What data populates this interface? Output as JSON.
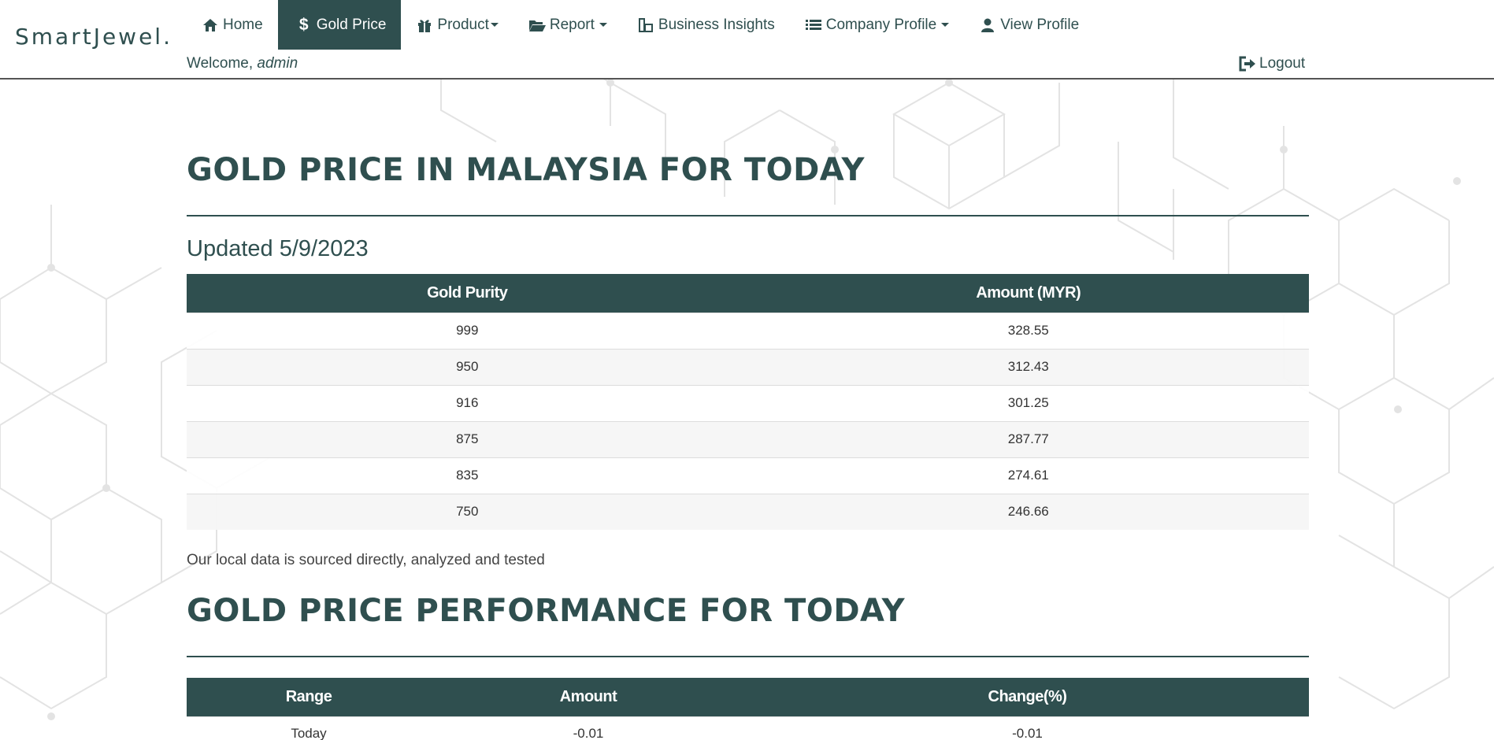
{
  "brand": "SmartJewel.",
  "nav": {
    "home": "Home",
    "gold_price": "Gold Price",
    "product": "Product",
    "report": "Report",
    "business_insights": "Business Insights",
    "company_profile": "Company Profile",
    "view_profile": "View Profile",
    "logout": "Logout"
  },
  "welcome": {
    "prefix": "Welcome, ",
    "user": "admin"
  },
  "section1": {
    "title": "GOLD PRICE IN MALAYSIA FOR TODAY",
    "updated": "Updated 5/9/2023",
    "columns": [
      "Gold Purity",
      "Amount (MYR)"
    ],
    "rows": [
      [
        "999",
        "328.55"
      ],
      [
        "950",
        "312.43"
      ],
      [
        "916",
        "301.25"
      ],
      [
        "875",
        "287.77"
      ],
      [
        "835",
        "274.61"
      ],
      [
        "750",
        "246.66"
      ]
    ],
    "note": "Our local data is sourced directly, analyzed and tested"
  },
  "section2": {
    "title": "GOLD PRICE PERFORMANCE FOR TODAY",
    "columns": [
      "Range",
      "Amount",
      "Change(%)"
    ],
    "rows": [
      [
        "Today",
        "-0.01",
        "-0.01"
      ]
    ]
  },
  "colors": {
    "primary": "#2f4f4f",
    "pattern": "#e3e3e3"
  }
}
